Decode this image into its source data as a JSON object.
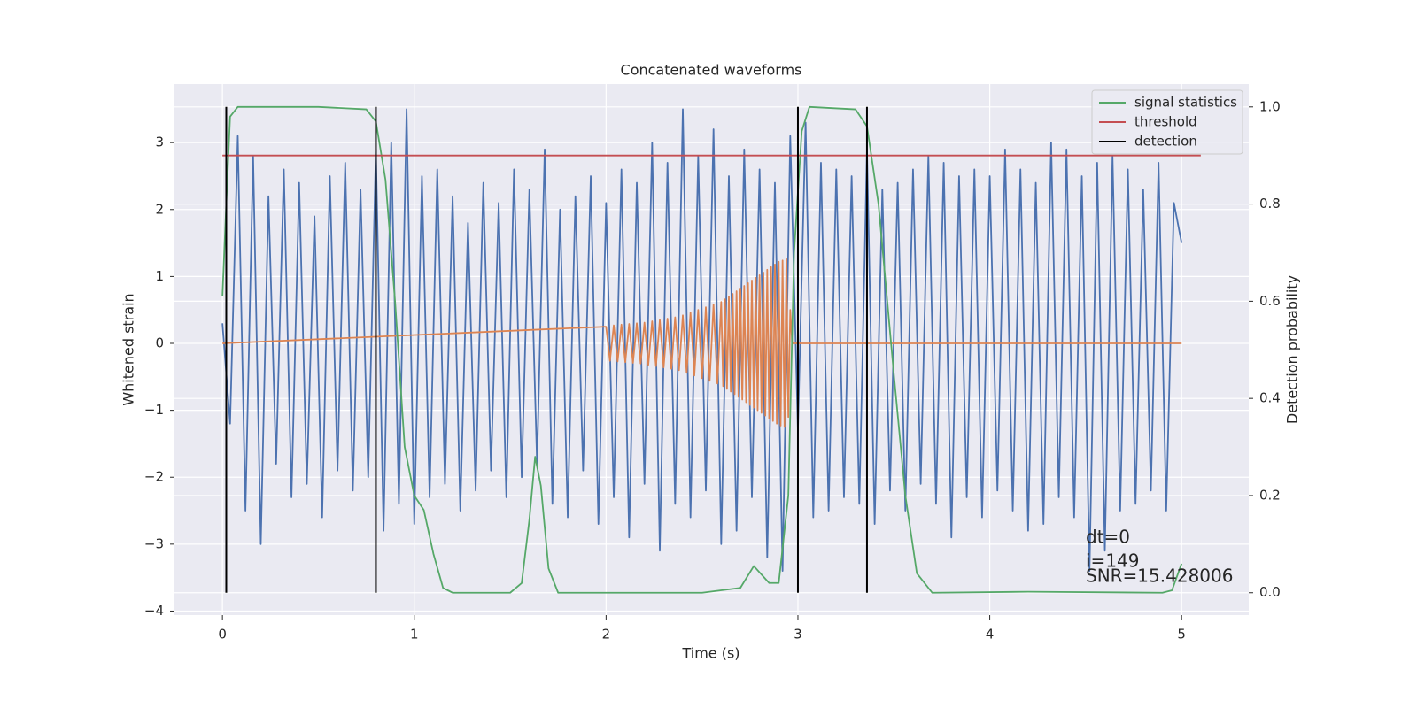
{
  "chart_data": {
    "type": "line",
    "title": "Concatenated waveforms",
    "xlabel": "Time (s)",
    "ylabel": "Whitened strain",
    "y2label": "Detection probability",
    "xlim": [
      -0.25,
      5.35
    ],
    "ylim": [
      -4.06,
      3.875
    ],
    "y2lim": [
      -0.046,
      1.047
    ],
    "xticks": [
      0,
      1,
      2,
      3,
      4,
      5
    ],
    "yticks": [
      {
        "value": -4,
        "label": "−4"
      },
      {
        "value": -3,
        "label": "−3"
      },
      {
        "value": -2,
        "label": "−2"
      },
      {
        "value": -1,
        "label": "−1"
      },
      0,
      1,
      2,
      3
    ],
    "y2ticks": [
      {
        "value": 0,
        "label": "0.0"
      },
      0.2,
      0.4,
      0.6,
      0.8,
      {
        "value": 1,
        "label": "1.0"
      }
    ],
    "grid": true,
    "legend": "upper right",
    "series": [
      {
        "color": "#4c72b0",
        "x": [
          0,
          0.04,
          0.08,
          0.12,
          0.16,
          0.2,
          0.24,
          0.28,
          0.32,
          0.36,
          0.4,
          0.44,
          0.48,
          0.52,
          0.56,
          0.6,
          0.64,
          0.68,
          0.72,
          0.76,
          0.8,
          0.84,
          0.88,
          0.92,
          0.96,
          1,
          1.04,
          1.08,
          1.12,
          1.16,
          1.2,
          1.24,
          1.28,
          1.32,
          1.36,
          1.4,
          1.44,
          1.48,
          1.52,
          1.56,
          1.6,
          1.64,
          1.68,
          1.72,
          1.76,
          1.8,
          1.84,
          1.88,
          1.92,
          1.96,
          2,
          2.04,
          2.08,
          2.12,
          2.16,
          2.2,
          2.24,
          2.28,
          2.32,
          2.36,
          2.4,
          2.44,
          2.48,
          2.52,
          2.56,
          2.6,
          2.64,
          2.68,
          2.72,
          2.76,
          2.8,
          2.84,
          2.88,
          2.92,
          2.96,
          3,
          3.04,
          3.08,
          3.12,
          3.16,
          3.2,
          3.24,
          3.28,
          3.32,
          3.36,
          3.4,
          3.44,
          3.48,
          3.52,
          3.56,
          3.6,
          3.64,
          3.68,
          3.72,
          3.76,
          3.8,
          3.84,
          3.88,
          3.92,
          3.96,
          4,
          4.04,
          4.08,
          4.12,
          4.16,
          4.2,
          4.24,
          4.28,
          4.32,
          4.36,
          4.4,
          4.44,
          4.48,
          4.52,
          4.56,
          4.6,
          4.64,
          4.68,
          4.72,
          4.76,
          4.8,
          4.84,
          4.88,
          4.92,
          4.96,
          5
        ],
        "values": [
          0.3,
          -1.2,
          3.1,
          -2.5,
          2.8,
          -3.0,
          2.2,
          -1.8,
          2.6,
          -2.3,
          2.4,
          -2.1,
          1.9,
          -2.6,
          2.5,
          -1.9,
          2.7,
          -2.2,
          2.3,
          -2.0,
          2.9,
          -2.8,
          3.0,
          -2.4,
          3.5,
          -2.7,
          2.5,
          -2.3,
          2.6,
          -2.1,
          2.2,
          -2.5,
          1.8,
          -2.2,
          2.4,
          -1.9,
          2.1,
          -2.3,
          2.6,
          -2.0,
          2.3,
          -1.8,
          2.9,
          -2.4,
          2.0,
          -2.6,
          2.2,
          -1.9,
          2.5,
          -2.7,
          2.1,
          -2.3,
          2.6,
          -2.9,
          2.4,
          -2.1,
          3.0,
          -3.1,
          2.7,
          -2.4,
          3.5,
          -2.6,
          2.8,
          -2.2,
          3.2,
          -3.0,
          2.5,
          -2.8,
          2.9,
          -2.3,
          2.6,
          -3.2,
          2.4,
          -3.4,
          3.1,
          -1.3,
          3.3,
          -2.6,
          2.7,
          -2.5,
          2.6,
          -2.3,
          2.5,
          -2.4,
          2.9,
          -2.7,
          2.3,
          -2.2,
          2.4,
          -2.5,
          2.6,
          -2.1,
          2.8,
          -2.4,
          2.7,
          -2.9,
          2.5,
          -2.3,
          2.6,
          -2.6,
          2.5,
          -2.2,
          2.9,
          -2.5,
          2.6,
          -2.8,
          2.4,
          -2.7,
          3.0,
          -2.3,
          2.9,
          -2.6,
          2.5,
          -3.4,
          2.7,
          -3.1,
          2.8,
          -2.5,
          2.6,
          -2.4,
          2.3,
          -2.2,
          2.7,
          -2.5,
          2.1,
          1.5
        ]
      },
      {
        "color": "#dd8452",
        "x": [
          0,
          2,
          2.01,
          2.02,
          2.03,
          2.04,
          2.05,
          2.06,
          2.07,
          2.08,
          2.09,
          2.1,
          2.11,
          2.12,
          2.13,
          2.14,
          2.15,
          2.16,
          2.17,
          2.18,
          2.19,
          2.2,
          2.21,
          2.22,
          2.23,
          2.24,
          2.25,
          2.26,
          2.27,
          2.28,
          2.29,
          2.3,
          2.31,
          2.32,
          2.33,
          2.34,
          2.35,
          2.36,
          2.37,
          2.38,
          2.39,
          2.4,
          2.41,
          2.42,
          2.43,
          2.44,
          2.45,
          2.46,
          2.47,
          2.48,
          2.49,
          2.5,
          2.51,
          2.52,
          2.53,
          2.54,
          2.55,
          2.56,
          2.57,
          2.58,
          2.59,
          2.6,
          2.61,
          2.62,
          2.63,
          2.64,
          2.65,
          2.66,
          2.67,
          2.68,
          2.69,
          2.7,
          2.71,
          2.72,
          2.73,
          2.74,
          2.75,
          2.76,
          2.77,
          2.78,
          2.79,
          2.8,
          2.81,
          2.82,
          2.83,
          2.84,
          2.85,
          2.86,
          2.87,
          2.88,
          2.89,
          2.9,
          2.91,
          2.92,
          2.93,
          2.94,
          2.95,
          2.96,
          2.97,
          5
        ],
        "values": [
          0,
          0.25,
          0,
          -0.26,
          0,
          0.27,
          0,
          -0.27,
          0,
          0.28,
          0,
          -0.28,
          0,
          0.29,
          0,
          -0.29,
          0,
          0.3,
          0,
          -0.3,
          0,
          0.31,
          0,
          -0.32,
          0,
          0.33,
          0,
          -0.34,
          0,
          0.35,
          0,
          -0.36,
          0,
          0.37,
          0,
          -0.38,
          0,
          0.39,
          0,
          -0.4,
          0,
          0.42,
          0,
          -0.44,
          0,
          0.46,
          0,
          -0.48,
          0,
          0.5,
          0,
          -0.52,
          0,
          0.54,
          0,
          -0.56,
          0,
          0.58,
          0,
          -0.6,
          0,
          0.62,
          -0.64,
          0.66,
          -0.68,
          0.7,
          -0.72,
          0.74,
          -0.76,
          0.78,
          -0.8,
          0.82,
          -0.84,
          0.86,
          -0.88,
          0.9,
          -0.92,
          0.94,
          -0.96,
          0.98,
          -1.0,
          1.02,
          -1.04,
          1.06,
          -1.08,
          1.1,
          -1.12,
          1.14,
          -1.16,
          1.18,
          -1.2,
          1.22,
          -1.23,
          1.24,
          -1.25,
          1.26,
          -1.1,
          0.5,
          0,
          0
        ]
      },
      {
        "name": "signal statistics",
        "color": "#55a868",
        "axis": "y2",
        "x": [
          0,
          0.02,
          0.04,
          0.08,
          0.5,
          0.75,
          0.8,
          0.85,
          0.9,
          0.95,
          1.0,
          1.05,
          1.1,
          1.15,
          1.2,
          1.5,
          1.56,
          1.6,
          1.63,
          1.66,
          1.7,
          1.75,
          2.5,
          2.7,
          2.77,
          2.85,
          2.9,
          2.95,
          2.98,
          3.02,
          3.06,
          3.3,
          3.36,
          3.42,
          3.5,
          3.56,
          3.62,
          3.7,
          4.2,
          4.9,
          4.95,
          5.0
        ],
        "values": [
          0.61,
          0.8,
          0.98,
          1.0,
          1.0,
          0.995,
          0.97,
          0.85,
          0.6,
          0.3,
          0.2,
          0.17,
          0.08,
          0.01,
          0.0,
          0.0,
          0.02,
          0.15,
          0.28,
          0.22,
          0.05,
          0.0,
          0.0,
          0.01,
          0.055,
          0.02,
          0.02,
          0.2,
          0.7,
          0.95,
          1.0,
          0.995,
          0.96,
          0.8,
          0.45,
          0.2,
          0.04,
          0.0,
          0.002,
          0.0,
          0.005,
          0.06
        ]
      },
      {
        "name": "threshold",
        "color": "#c44e52",
        "axis": "y2",
        "x": [
          0,
          5.1
        ],
        "values": [
          0.9,
          0.9
        ]
      },
      {
        "name": "detection",
        "color": "#000000",
        "axis": "y2",
        "kind": "vlines",
        "x": [
          0.02,
          0.8,
          3.0,
          3.36
        ],
        "ymin": [
          0,
          0,
          0,
          0
        ],
        "ymax": [
          1,
          1,
          1,
          1
        ]
      }
    ],
    "annotations": [
      "dt=0",
      "i=149",
      "SNR=15.428006"
    ]
  }
}
